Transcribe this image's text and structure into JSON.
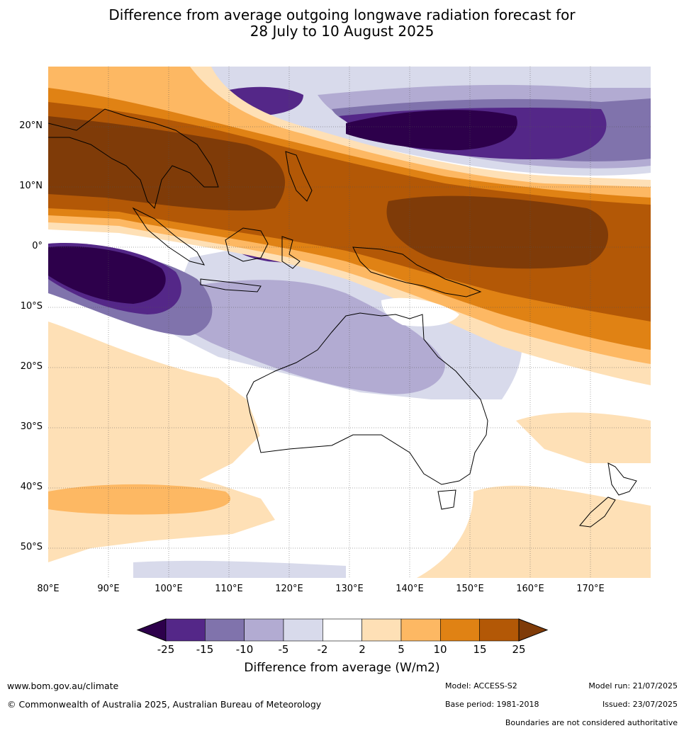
{
  "title_line1": "Difference from average outgoing longwave radiation forecast for",
  "title_line2": "28 July to 10 August 2025",
  "lat_labels": [
    "20°N",
    "10°N",
    "0°",
    "10°S",
    "20°S",
    "30°S",
    "40°S",
    "50°S"
  ],
  "lon_labels": [
    "80°E",
    "90°E",
    "100°E",
    "110°E",
    "120°E",
    "130°E",
    "140°E",
    "150°E",
    "160°E",
    "170°E"
  ],
  "colorbar": {
    "ticks": [
      "-25",
      "-15",
      "-10",
      "-5",
      "-2",
      "2",
      "5",
      "10",
      "15",
      "25"
    ],
    "colors": [
      "#2d004b",
      "#542788",
      "#8073ac",
      "#b2abd2",
      "#d8daeb",
      "#ffffff",
      "#fee0b6",
      "#fdb863",
      "#e08214",
      "#b35806",
      "#7f3b08"
    ],
    "label": "Difference from average (W/m2)"
  },
  "footer": {
    "website": "www.bom.gov.au/climate",
    "copyright": "© Commonwealth of Australia 2025, Australian Bureau of Meteorology",
    "model": "Model: ACCESS-S2",
    "base_period": "Base period: 1981-2018",
    "model_run": "Model run: 21/07/2025",
    "issued": "Issued: 23/07/2025",
    "disclaimer": "Boundaries are not considered authoritative"
  }
}
